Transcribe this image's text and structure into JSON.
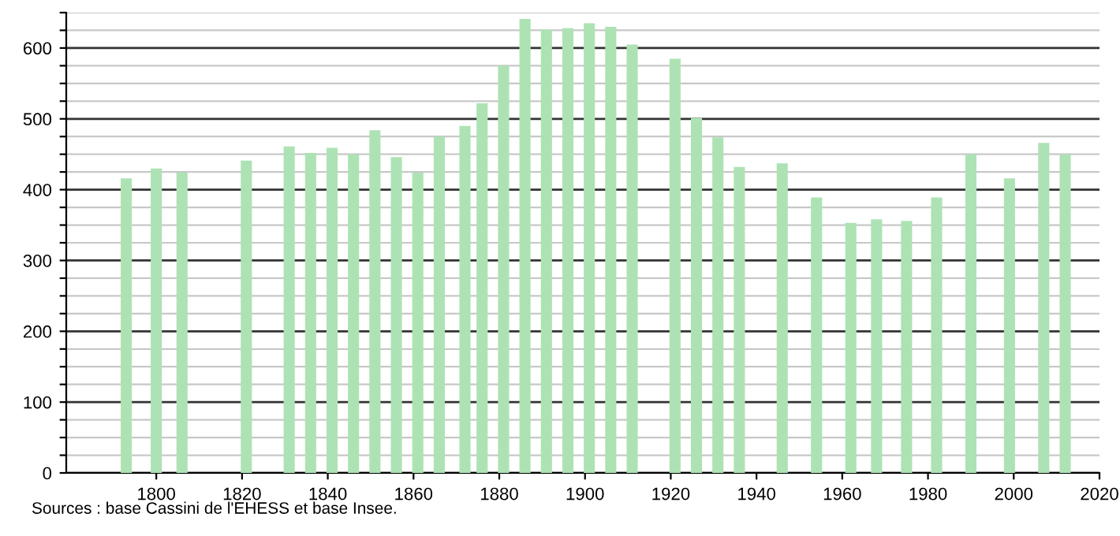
{
  "chart_data": {
    "type": "bar",
    "x": [
      1793,
      1800,
      1806,
      1821,
      1831,
      1836,
      1841,
      1846,
      1851,
      1856,
      1861,
      1866,
      1872,
      1876,
      1881,
      1886,
      1891,
      1896,
      1901,
      1906,
      1911,
      1921,
      1926,
      1931,
      1936,
      1946,
      1954,
      1962,
      1968,
      1975,
      1982,
      1990,
      1999,
      2007,
      2012
    ],
    "values": [
      416,
      430,
      424,
      441,
      461,
      452,
      459,
      450,
      484,
      446,
      424,
      475,
      490,
      522,
      575,
      641,
      626,
      628,
      635,
      630,
      605,
      585,
      501,
      474,
      432,
      437,
      389,
      353,
      358,
      356,
      389,
      450,
      416,
      466,
      450
    ],
    "color": "#ade3b4",
    "xlim": [
      1779,
      2020
    ],
    "xticks": [
      1800,
      1820,
      1840,
      1860,
      1880,
      1900,
      1920,
      1940,
      1960,
      1980,
      2000,
      2020
    ],
    "ylim": [
      0,
      650
    ],
    "yticks": [
      0,
      {
        "value": 25,
        "label": null
      },
      {
        "value": 50,
        "label": null
      },
      {
        "value": 75,
        "label": null
      },
      100,
      {
        "value": 125,
        "label": null
      },
      {
        "value": 150,
        "label": null
      },
      {
        "value": 175,
        "label": null
      },
      200,
      {
        "value": 225,
        "label": null
      },
      {
        "value": 250,
        "label": null
      },
      {
        "value": 275,
        "label": null
      },
      300,
      {
        "value": 325,
        "label": null
      },
      {
        "value": 350,
        "label": null
      },
      {
        "value": 375,
        "label": null
      },
      400,
      {
        "value": 425,
        "label": null
      },
      {
        "value": 450,
        "label": null
      },
      {
        "value": 475,
        "label": null
      },
      500,
      {
        "value": 525,
        "label": null
      },
      {
        "value": 550,
        "label": null
      },
      {
        "value": 575,
        "label": null
      },
      600,
      {
        "value": 625,
        "label": null
      },
      {
        "value": 650,
        "label": null
      }
    ],
    "grid": "y",
    "annotations": [
      "Sources : base Cassini de l'EHESS et base Insee."
    ]
  }
}
